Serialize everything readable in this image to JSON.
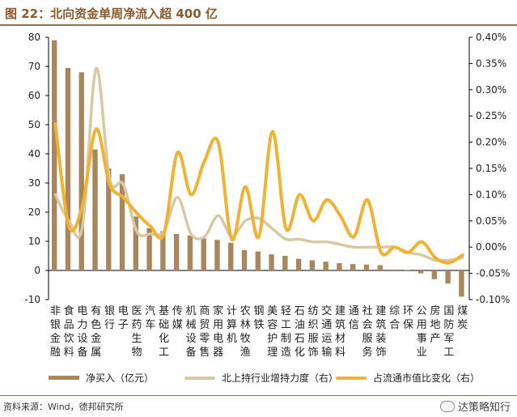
{
  "title": "图 22：北向资金单周净流入超 400 亿",
  "source": "资料来源：Wind，德邦研究所",
  "watermark": "达策略知行",
  "legend": {
    "bar": "净买入（亿元）",
    "line1": "北上持行业增持力度（右）",
    "line2": "占流通市值比变化（右）"
  },
  "colors": {
    "bar": "#a9865c",
    "line1": "#d9c9a3",
    "line2": "#f0b232",
    "title": "#8b5a2b"
  },
  "chart_data": {
    "type": "bar",
    "categories": [
      "非银金融",
      "食品饮料",
      "电力设备",
      "有色金属",
      "银行",
      "电子",
      "医药生物",
      "汽车",
      "基础化工",
      "传媒",
      "机械设备",
      "商贸零售",
      "家用电器",
      "计算机",
      "农林牧渔",
      "钢铁",
      "美容护理",
      "轻工制造",
      "石油石化",
      "纺织服饰",
      "交通运输",
      "建筑材料",
      "通信",
      "社会服务",
      "建筑装饰",
      "综合",
      "环保",
      "公用事业",
      "房地产",
      "国防军工",
      "煤炭"
    ],
    "series": [
      {
        "name": "净买入（亿元）",
        "axis": "left",
        "values": [
          79,
          69.5,
          68,
          41.5,
          35,
          33,
          18.5,
          14.5,
          13.5,
          12.5,
          12,
          11,
          10.5,
          9.5,
          7,
          6.5,
          5.5,
          5,
          4,
          3.5,
          3,
          2.5,
          2.2,
          2,
          1.8,
          0.3,
          0.2,
          -1,
          -3,
          -4.5,
          -9
        ]
      },
      {
        "name": "北上持行业增持力度（右）",
        "axis": "right",
        "values": [
          0.1,
          0.05,
          0.04,
          0.34,
          0.13,
          0.12,
          0.03,
          0.025,
          0.03,
          0.095,
          0.025,
          0.02,
          0.06,
          0.02,
          0.05,
          0.055,
          0.035,
          0.015,
          0.015,
          0.01,
          0.01,
          0.005,
          0.0,
          0.0,
          0.0,
          0.0,
          -0.01,
          -0.015,
          -0.025,
          -0.025,
          -0.02
        ]
      },
      {
        "name": "占流通市值比变化（右）",
        "axis": "right",
        "values": [
          0.235,
          0.04,
          0.08,
          0.225,
          0.12,
          0.095,
          0.065,
          0.04,
          0.025,
          0.18,
          0.1,
          0.165,
          0.2,
          0.015,
          0.115,
          0.02,
          0.22,
          0.035,
          0.1,
          0.05,
          0.09,
          0.06,
          0.02,
          0.09,
          -0.01,
          0.0,
          -0.01,
          0.01,
          -0.02,
          -0.03,
          -0.015
        ]
      }
    ],
    "ylim": [
      -10,
      80
    ],
    "yticks": [
      -10,
      0,
      10,
      20,
      30,
      40,
      50,
      60,
      70,
      80
    ],
    "y2lim": [
      -0.1,
      0.4
    ],
    "y2ticks": [
      "-0.10%",
      "-0.05%",
      "0.00%",
      "0.05%",
      "0.10%",
      "0.15%",
      "0.20%",
      "0.25%",
      "0.30%",
      "0.35%",
      "0.40%"
    ],
    "grid": false,
    "legend_position": "bottom"
  }
}
